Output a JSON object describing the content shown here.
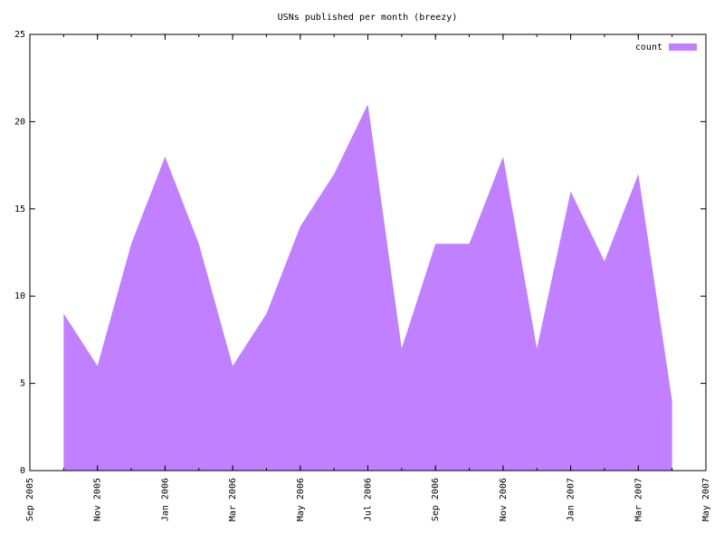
{
  "chart_data": {
    "type": "area",
    "title": "USNs published per month (breezy)",
    "x": [
      "2005-10",
      "2005-11",
      "2005-12",
      "2006-01",
      "2006-02",
      "2006-03",
      "2006-04",
      "2006-05",
      "2006-06",
      "2006-07",
      "2006-08",
      "2006-09",
      "2006-10",
      "2006-11",
      "2006-12",
      "2007-01",
      "2007-02",
      "2007-03",
      "2007-04"
    ],
    "series": [
      {
        "name": "count",
        "color": "#c080ff",
        "values": [
          9,
          6,
          13,
          18,
          13,
          6,
          9,
          14,
          17,
          21,
          7,
          13,
          13,
          18,
          7,
          16,
          12,
          17,
          4
        ]
      }
    ],
    "xlim": [
      "2005-09",
      "2007-05"
    ],
    "xticks": [
      {
        "value": "2005-09",
        "label": "Sep 2005"
      },
      {
        "value": "2005-11",
        "label": "Nov 2005"
      },
      {
        "value": "2006-01",
        "label": "Jan 2006"
      },
      {
        "value": "2006-03",
        "label": "Mar 2006"
      },
      {
        "value": "2006-05",
        "label": "May 2006"
      },
      {
        "value": "2006-07",
        "label": "Jul 2006"
      },
      {
        "value": "2006-09",
        "label": "Sep 2006"
      },
      {
        "value": "2006-11",
        "label": "Nov 2006"
      },
      {
        "value": "2007-01",
        "label": "Jan 2007"
      },
      {
        "value": "2007-03",
        "label": "Mar 2007"
      },
      {
        "value": "2007-05",
        "label": "May 2007"
      }
    ],
    "ylim": [
      0,
      25
    ],
    "yticks": [
      0,
      5,
      10,
      15,
      20,
      25
    ],
    "legend": "top-right",
    "grid": false
  }
}
